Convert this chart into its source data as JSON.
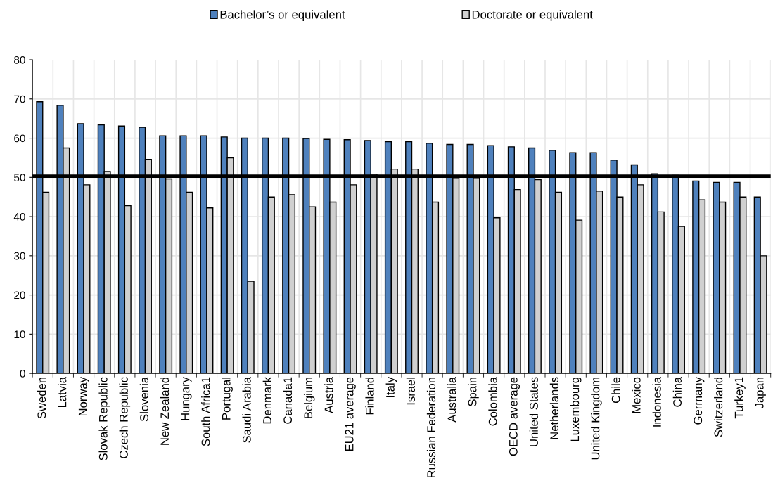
{
  "chart_data": {
    "type": "bar",
    "categories": [
      "Sweden",
      "Latvia",
      "Norway",
      "Slovak Republic",
      "Czech Republic",
      "Slovenia",
      "New Zealand",
      "Hungary",
      "South Africa1",
      "Portugal",
      "Saudi Arabia",
      "Denmark",
      "Canada1",
      "Belgium",
      "Austria",
      "EU21 average",
      "Finland",
      "Italy",
      "Israel",
      "Russian Federation",
      "Australia",
      "Spain",
      "Colombia",
      "OECD average",
      "United States",
      "Netherlands",
      "Luxembourg",
      "United Kingdom",
      "Chile",
      "Mexico",
      "Indonesia",
      "China",
      "Germany",
      "Switzerland",
      "Turkey1",
      "Japan"
    ],
    "series": [
      {
        "name": "Bachelor’s or equivalent",
        "color": "#4f81bd",
        "values": [
          69.3,
          68.4,
          63.7,
          63.4,
          63.1,
          62.8,
          60.6,
          60.6,
          60.6,
          60.3,
          60.0,
          60.0,
          60.0,
          59.9,
          59.7,
          59.6,
          59.4,
          59.1,
          59.1,
          58.7,
          58.4,
          58.4,
          58.1,
          57.8,
          57.5,
          56.9,
          56.3,
          56.3,
          54.4,
          53.2,
          50.9,
          50.5,
          49.1,
          48.7,
          48.7,
          45.0
        ]
      },
      {
        "name": "Doctorate or equivalent",
        "color": "#d0d0d0",
        "values": [
          46.2,
          57.5,
          48.1,
          51.5,
          42.8,
          54.6,
          49.6,
          46.2,
          42.2,
          55.0,
          23.5,
          45.0,
          45.6,
          42.5,
          43.7,
          48.1,
          50.8,
          52.1,
          52.1,
          43.7,
          49.9,
          49.9,
          39.7,
          46.9,
          49.4,
          46.2,
          39.1,
          46.5,
          45.0,
          48.1,
          41.2,
          37.5,
          44.3,
          43.7,
          45.0,
          30.0
        ]
      }
    ],
    "ylim": [
      0,
      80
    ],
    "yticks": [
      0,
      10,
      20,
      30,
      40,
      50,
      60,
      70,
      80
    ],
    "ref_lines": [
      {
        "axis": "y",
        "value": 50.3,
        "color": "#000000"
      }
    ],
    "grid": true,
    "legend": "top"
  }
}
